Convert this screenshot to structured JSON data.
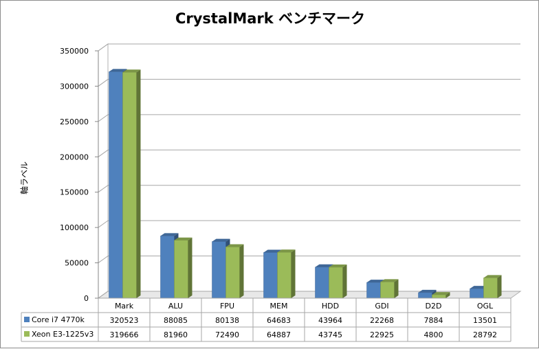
{
  "chart_data": {
    "type": "bar",
    "title": "CrystalMark ベンチマーク",
    "ylabel": "軸ラベル",
    "xlabel": "",
    "ylim": [
      0,
      350000
    ],
    "ytick_step": 50000,
    "grid": true,
    "legend_placement": "data-table",
    "categories": [
      "Mark",
      "ALU",
      "FPU",
      "MEM",
      "HDD",
      "GDI",
      "D2D",
      "OGL"
    ],
    "series": [
      {
        "name": "Core i7 4770k",
        "color": "#4f81bd",
        "values": [
          320523,
          88085,
          80138,
          64683,
          43964,
          22268,
          7884,
          13501
        ]
      },
      {
        "name": "Xeon E3-1225v3",
        "color": "#9bbb59",
        "values": [
          319666,
          81960,
          72490,
          64887,
          43745,
          22925,
          4800,
          28792
        ]
      }
    ]
  }
}
